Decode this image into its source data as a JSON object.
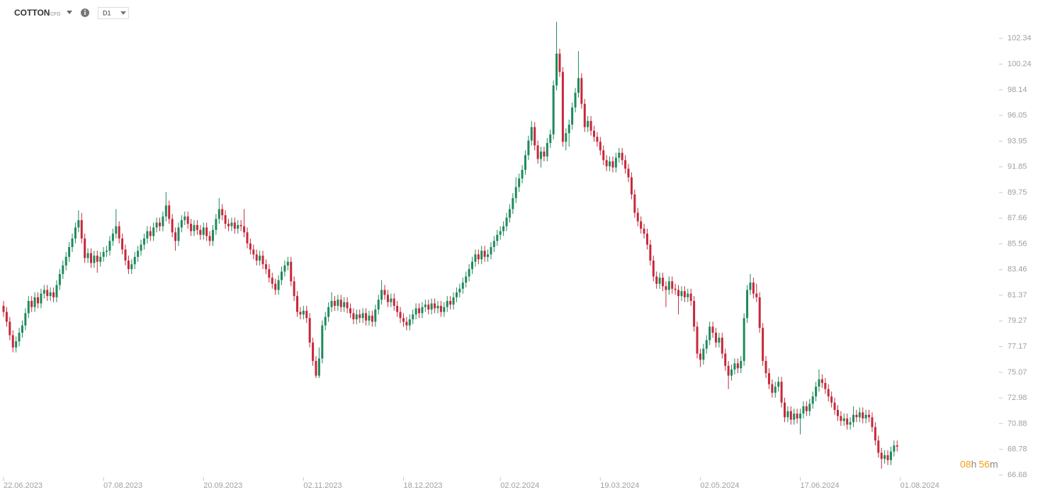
{
  "header": {
    "symbol": "COTTON",
    "instrument": "CFD",
    "timeframe": "D1"
  },
  "timer": {
    "hours": "08",
    "hours_unit": "h",
    "minutes": "56",
    "minutes_unit": "m"
  },
  "chart_data": {
    "type": "candlestick",
    "up_color": "#1e8a5c",
    "down_color": "#c6283a",
    "ylim": [
      66.68,
      104.9
    ],
    "yticks": [
      66.68,
      68.78,
      70.88,
      72.98,
      75.07,
      77.17,
      79.27,
      81.37,
      83.46,
      85.56,
      87.66,
      89.75,
      91.85,
      93.95,
      96.05,
      98.14,
      100.24,
      102.34
    ],
    "xticks": [
      {
        "value": 0,
        "label": "22.06.2023"
      },
      {
        "value": 32,
        "label": "07.08.2023"
      },
      {
        "value": 64,
        "label": "20.09.2023"
      },
      {
        "value": 96,
        "label": "02.11.2023"
      },
      {
        "value": 128,
        "label": "18.12.2023"
      },
      {
        "value": 159,
        "label": "02.02.2024"
      },
      {
        "value": 191,
        "label": "19.03.2024"
      },
      {
        "value": 223,
        "label": "02.05.2024"
      },
      {
        "value": 255,
        "label": "17.06.2024"
      },
      {
        "value": 287,
        "label": "01.08.2024"
      }
    ],
    "open": [
      80.5,
      80.0,
      79.2,
      78.1,
      77.1,
      77.6,
      78.3,
      78.9,
      79.9,
      80.9,
      80.4,
      81.2,
      80.7,
      81.5,
      81.8,
      81.3,
      81.6,
      81.2,
      82.2,
      83.1,
      83.8,
      84.5,
      85.3,
      86.0,
      86.9,
      87.5,
      86.0,
      84.4,
      84.8,
      84.0,
      84.6,
      84.1,
      84.5,
      84.9,
      85.0,
      85.8,
      86.4,
      87.0,
      86.0,
      85.1,
      84.2,
      83.5,
      83.9,
      84.5,
      85.0,
      85.5,
      86.0,
      86.6,
      86.2,
      86.9,
      87.3,
      87.0,
      87.8,
      88.7,
      87.6,
      86.5,
      85.8,
      86.9,
      87.5,
      87.8,
      87.2,
      86.6,
      87.1,
      86.7,
      86.3,
      86.9,
      86.2,
      85.8,
      86.7,
      87.6,
      88.4,
      87.9,
      87.2,
      87.0,
      87.3,
      86.8,
      87.1,
      87.0,
      86.5,
      85.6,
      85.1,
      84.7,
      84.2,
      84.6,
      83.9,
      83.5,
      82.8,
      82.3,
      81.8,
      82.6,
      83.3,
      83.8,
      84.1,
      82.5,
      81.3,
      80.0,
      79.8,
      80.1,
      79.5,
      77.5,
      76.0,
      74.8,
      76.2,
      78.9,
      79.6,
      80.4,
      80.9,
      80.5,
      81.0,
      80.4,
      80.8,
      80.3,
      79.9,
      79.4,
      79.8,
      79.5,
      79.9,
      79.3,
      79.7,
      79.2,
      80.2,
      81.0,
      81.8,
      81.4,
      80.8,
      81.1,
      80.5,
      80.0,
      79.5,
      79.2,
      78.9,
      79.4,
      79.8,
      80.3,
      79.9,
      80.4,
      80.6,
      80.2,
      80.7,
      80.3,
      80.5,
      80.0,
      80.4,
      80.9,
      80.6,
      81.2,
      81.6,
      81.9,
      82.4,
      82.9,
      83.5,
      84.1,
      84.7,
      84.3,
      85.0,
      84.5,
      84.7,
      85.3,
      85.8,
      86.3,
      86.6,
      87.0,
      87.7,
      88.4,
      89.3,
      90.2,
      90.9,
      91.6,
      92.8,
      94.0,
      95.1,
      93.6,
      92.5,
      93.1,
      92.7,
      93.8,
      94.5,
      98.5,
      101.1,
      99.6,
      93.9,
      94.6,
      95.3,
      96.7,
      97.9,
      99.1,
      97.0,
      95.1,
      95.6,
      94.8,
      94.3,
      93.9,
      93.2,
      92.4,
      91.9,
      92.3,
      91.8,
      92.6,
      93.0,
      92.4,
      91.7,
      91.0,
      89.6,
      88.1,
      87.4,
      86.8,
      86.4,
      85.5,
      84.2,
      82.9,
      82.3,
      82.8,
      82.1,
      81.8,
      82.5,
      81.9,
      81.8,
      81.3,
      81.7,
      81.2,
      81.5,
      80.9,
      78.8,
      76.6,
      76.1,
      77.0,
      77.7,
      78.8,
      78.3,
      77.5,
      77.9,
      76.6,
      75.6,
      74.8,
      75.3,
      75.8,
      75.4,
      76.0,
      79.5,
      81.8,
      82.4,
      81.5,
      81.2,
      78.7,
      76.0,
      75.0,
      74.1,
      73.4,
      73.9,
      74.3,
      72.6,
      71.4,
      71.9,
      71.2,
      71.7,
      71.3,
      71.7,
      72.3,
      71.9,
      72.5,
      73.1,
      73.9,
      74.5,
      74.2,
      73.7,
      73.1,
      72.6,
      72.0,
      71.5,
      71.1,
      71.3,
      70.8,
      71.0,
      71.6,
      71.4,
      71.8,
      71.3,
      71.6,
      71.4,
      70.6,
      69.5,
      68.5,
      68.0,
      68.3,
      67.9,
      68.6,
      69.1
    ],
    "high": [
      80.9,
      80.4,
      79.6,
      78.5,
      78.0,
      78.7,
      79.3,
      80.3,
      81.3,
      81.3,
      81.6,
      81.6,
      81.9,
      82.2,
      82.2,
      82.0,
      82.0,
      82.6,
      83.5,
      84.2,
      84.9,
      85.7,
      86.4,
      87.3,
      88.3,
      88.1,
      86.4,
      85.2,
      85.2,
      85.0,
      85.0,
      84.9,
      85.3,
      85.4,
      86.2,
      86.8,
      88.4,
      87.4,
      86.4,
      85.5,
      84.6,
      84.3,
      84.9,
      85.4,
      85.9,
      86.4,
      87.0,
      87.0,
      87.3,
      87.7,
      87.7,
      88.2,
      89.8,
      89.1,
      88.0,
      86.9,
      87.3,
      87.9,
      88.2,
      88.2,
      87.6,
      87.5,
      87.5,
      87.1,
      87.3,
      87.3,
      86.6,
      87.1,
      88.0,
      89.3,
      88.8,
      88.3,
      87.6,
      87.7,
      87.7,
      87.5,
      87.5,
      88.4,
      86.9,
      86.0,
      85.5,
      85.1,
      85.0,
      85.0,
      84.3,
      83.9,
      83.2,
      82.7,
      83.0,
      83.7,
      84.2,
      84.5,
      84.5,
      82.9,
      81.7,
      80.4,
      80.5,
      80.5,
      79.9,
      77.9,
      76.4,
      77.1,
      79.3,
      80.0,
      80.8,
      81.6,
      81.3,
      81.4,
      81.4,
      81.2,
      81.2,
      80.7,
      80.3,
      80.2,
      80.2,
      80.3,
      80.3,
      80.1,
      80.1,
      80.6,
      81.4,
      82.6,
      82.2,
      81.8,
      81.5,
      81.5,
      80.9,
      80.4,
      79.9,
      79.6,
      79.8,
      80.2,
      80.7,
      80.7,
      80.8,
      81.0,
      81.0,
      81.1,
      81.1,
      80.9,
      80.9,
      80.8,
      81.3,
      81.3,
      81.6,
      82.0,
      82.3,
      82.8,
      83.3,
      83.9,
      84.5,
      85.1,
      85.1,
      85.4,
      85.4,
      85.1,
      85.7,
      86.2,
      86.7,
      87.0,
      87.4,
      88.1,
      88.8,
      89.7,
      91.0,
      91.3,
      92.0,
      93.2,
      94.4,
      95.6,
      95.5,
      94.0,
      93.5,
      93.5,
      94.2,
      94.9,
      98.9,
      103.7,
      101.5,
      100.0,
      95.0,
      95.7,
      97.1,
      98.3,
      101.3,
      99.5,
      97.4,
      96.0,
      96.0,
      95.2,
      94.7,
      94.3,
      93.6,
      92.8,
      92.7,
      92.7,
      93.0,
      93.4,
      93.4,
      92.8,
      92.1,
      91.4,
      90.0,
      88.5,
      87.8,
      87.2,
      86.8,
      85.9,
      84.6,
      83.3,
      83.2,
      83.2,
      82.5,
      82.9,
      82.9,
      82.3,
      82.2,
      82.1,
      82.1,
      81.9,
      81.9,
      81.3,
      79.2,
      77.0,
      77.4,
      78.1,
      79.2,
      79.2,
      78.7,
      78.3,
      78.3,
      77.0,
      76.0,
      75.7,
      76.2,
      76.2,
      76.4,
      79.9,
      82.2,
      83.1,
      82.8,
      82.3,
      81.6,
      79.1,
      76.4,
      75.4,
      74.5,
      74.3,
      74.7,
      74.7,
      73.0,
      72.3,
      72.3,
      72.1,
      72.1,
      72.1,
      72.7,
      72.7,
      72.9,
      73.5,
      74.3,
      75.3,
      74.9,
      74.6,
      74.1,
      73.5,
      73.0,
      72.4,
      71.9,
      71.7,
      71.7,
      71.4,
      72.3,
      72.0,
      72.2,
      72.2,
      72.0,
      72.0,
      71.8,
      71.0,
      69.9,
      68.9,
      68.7,
      68.7,
      69.0,
      69.5,
      69.5
    ],
    "low": [
      79.6,
      78.8,
      77.7,
      76.7,
      76.7,
      77.2,
      77.9,
      78.5,
      79.5,
      80.0,
      80.0,
      80.3,
      80.3,
      81.1,
      80.9,
      80.9,
      80.8,
      80.8,
      81.8,
      82.7,
      83.4,
      84.1,
      84.9,
      85.6,
      86.5,
      85.6,
      84.0,
      84.0,
      83.6,
      83.6,
      83.2,
      83.7,
      84.1,
      84.5,
      84.6,
      85.4,
      86.0,
      85.6,
      84.7,
      83.8,
      83.1,
      83.1,
      83.5,
      84.1,
      84.6,
      85.1,
      85.6,
      85.8,
      85.8,
      86.5,
      86.6,
      86.6,
      87.4,
      87.2,
      86.1,
      85.0,
      85.4,
      86.5,
      87.1,
      86.8,
      86.2,
      86.2,
      86.3,
      85.9,
      85.9,
      85.8,
      85.4,
      85.4,
      86.3,
      87.2,
      87.5,
      86.8,
      86.6,
      86.6,
      86.4,
      86.4,
      86.6,
      86.1,
      85.2,
      84.7,
      84.3,
      83.8,
      83.8,
      83.5,
      83.1,
      82.4,
      81.9,
      81.4,
      81.4,
      82.2,
      82.9,
      83.4,
      82.1,
      80.9,
      79.6,
      79.4,
      79.4,
      79.1,
      77.1,
      75.6,
      74.6,
      74.6,
      75.8,
      78.5,
      79.2,
      80.0,
      80.1,
      80.1,
      80.0,
      80.0,
      79.9,
      79.5,
      79.0,
      79.0,
      79.1,
      79.1,
      78.9,
      78.9,
      78.8,
      78.8,
      79.8,
      80.6,
      81.0,
      80.4,
      80.4,
      80.1,
      79.6,
      79.1,
      78.8,
      78.5,
      78.5,
      79.0,
      79.4,
      79.5,
      79.5,
      80.0,
      79.8,
      79.8,
      79.9,
      79.9,
      79.6,
      79.6,
      80.0,
      80.2,
      80.2,
      80.8,
      81.2,
      81.5,
      82.0,
      82.5,
      83.1,
      83.7,
      83.9,
      83.9,
      84.1,
      84.1,
      84.3,
      84.9,
      85.4,
      85.9,
      86.2,
      86.6,
      87.3,
      88.0,
      88.9,
      89.8,
      90.5,
      91.2,
      92.4,
      93.6,
      93.2,
      92.1,
      91.8,
      92.3,
      92.3,
      93.4,
      94.1,
      98.1,
      99.2,
      93.5,
      93.2,
      93.5,
      94.9,
      96.3,
      97.5,
      96.6,
      94.7,
      94.7,
      94.4,
      93.9,
      93.5,
      92.8,
      92.0,
      91.5,
      91.5,
      91.4,
      91.4,
      92.2,
      92.0,
      91.3,
      90.6,
      89.2,
      87.7,
      87.0,
      86.4,
      86.0,
      85.1,
      83.8,
      82.5,
      81.9,
      81.9,
      81.7,
      80.4,
      81.4,
      81.5,
      81.4,
      79.8,
      80.9,
      80.8,
      80.8,
      80.5,
      78.4,
      76.2,
      75.5,
      75.7,
      76.6,
      77.3,
      77.9,
      77.1,
      77.1,
      76.2,
      75.2,
      73.7,
      74.4,
      74.9,
      75.0,
      75.0,
      75.6,
      79.1,
      81.4,
      81.1,
      80.8,
      78.3,
      75.6,
      74.6,
      73.7,
      73.0,
      73.0,
      73.5,
      72.2,
      71.0,
      71.0,
      70.8,
      70.8,
      70.9,
      70.0,
      71.3,
      71.5,
      71.5,
      72.1,
      72.7,
      73.5,
      73.8,
      73.3,
      72.7,
      72.2,
      71.6,
      71.1,
      70.7,
      70.7,
      70.4,
      70.4,
      70.6,
      71.0,
      71.0,
      70.9,
      70.9,
      71.0,
      70.2,
      69.1,
      68.1,
      67.2,
      67.6,
      67.5,
      67.5,
      68.2,
      68.6
    ],
    "close": [
      80.0,
      79.2,
      78.1,
      77.1,
      77.6,
      78.3,
      78.9,
      79.9,
      80.9,
      80.4,
      81.2,
      80.7,
      81.5,
      81.8,
      81.3,
      81.6,
      81.2,
      82.2,
      83.1,
      83.8,
      84.5,
      85.3,
      86.0,
      86.9,
      87.5,
      86.0,
      84.4,
      84.8,
      84.0,
      84.6,
      84.1,
      84.5,
      84.9,
      85.0,
      85.8,
      86.4,
      87.0,
      86.0,
      85.1,
      84.2,
      83.5,
      83.9,
      84.5,
      85.0,
      85.5,
      86.0,
      86.6,
      86.2,
      86.9,
      87.3,
      87.0,
      87.8,
      88.7,
      87.6,
      86.5,
      85.8,
      86.9,
      87.5,
      87.8,
      87.2,
      86.6,
      87.1,
      86.7,
      86.3,
      86.9,
      86.2,
      85.8,
      86.7,
      87.6,
      88.4,
      87.9,
      87.2,
      87.0,
      87.3,
      86.8,
      87.1,
      87.0,
      86.5,
      85.6,
      85.1,
      84.7,
      84.2,
      84.6,
      83.9,
      83.5,
      82.8,
      82.3,
      81.8,
      82.6,
      83.3,
      83.8,
      84.1,
      82.5,
      81.3,
      80.0,
      79.8,
      80.1,
      79.5,
      77.5,
      76.0,
      74.8,
      76.2,
      78.9,
      79.6,
      80.4,
      80.9,
      80.5,
      81.0,
      80.4,
      80.8,
      80.3,
      79.9,
      79.4,
      79.8,
      79.5,
      79.9,
      79.3,
      79.7,
      79.2,
      80.2,
      81.0,
      81.8,
      81.4,
      80.8,
      81.1,
      80.5,
      80.0,
      79.5,
      79.2,
      78.9,
      79.4,
      79.8,
      80.3,
      79.9,
      80.4,
      80.6,
      80.2,
      80.7,
      80.3,
      80.5,
      80.0,
      80.4,
      80.9,
      80.6,
      81.2,
      81.6,
      81.9,
      82.4,
      82.9,
      83.5,
      84.1,
      84.7,
      84.3,
      85.0,
      84.5,
      84.7,
      85.3,
      85.8,
      86.3,
      86.6,
      87.0,
      87.7,
      88.4,
      89.3,
      90.2,
      90.9,
      91.6,
      92.8,
      94.0,
      95.1,
      93.6,
      92.5,
      93.1,
      92.7,
      93.8,
      94.5,
      98.5,
      101.1,
      99.6,
      93.9,
      94.6,
      95.3,
      96.7,
      97.9,
      99.1,
      97.0,
      95.1,
      95.6,
      94.8,
      94.3,
      93.9,
      93.2,
      92.4,
      91.9,
      92.3,
      91.8,
      92.6,
      93.0,
      92.4,
      91.7,
      91.0,
      89.6,
      88.1,
      87.4,
      86.8,
      86.4,
      85.5,
      84.2,
      82.9,
      82.3,
      82.8,
      82.1,
      81.8,
      82.5,
      81.9,
      81.8,
      81.3,
      81.7,
      81.2,
      81.5,
      80.9,
      78.8,
      76.6,
      76.1,
      77.0,
      77.7,
      78.8,
      78.3,
      77.5,
      77.9,
      76.6,
      75.6,
      74.8,
      75.3,
      75.8,
      75.4,
      76.0,
      79.5,
      81.8,
      82.4,
      81.5,
      81.2,
      78.7,
      76.0,
      75.0,
      74.1,
      73.4,
      73.9,
      74.3,
      72.6,
      71.4,
      71.9,
      71.2,
      71.7,
      71.3,
      71.7,
      72.3,
      71.9,
      72.5,
      73.1,
      73.9,
      74.5,
      74.2,
      73.7,
      73.1,
      72.6,
      72.0,
      71.5,
      71.1,
      71.3,
      70.8,
      71.0,
      71.6,
      71.4,
      71.8,
      71.3,
      71.6,
      71.4,
      70.6,
      69.5,
      68.5,
      68.0,
      68.3,
      67.9,
      68.6,
      69.1,
      69.0
    ]
  }
}
